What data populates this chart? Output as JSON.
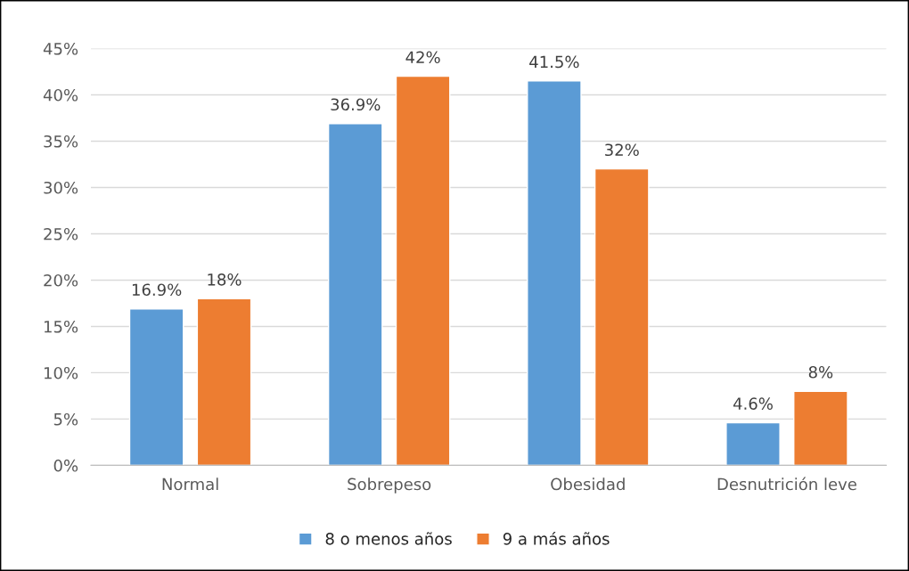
{
  "chart_data": {
    "type": "bar",
    "categories": [
      "Normal",
      "Sobrepeso",
      "Obesidad",
      "Desnutrición leve"
    ],
    "series": [
      {
        "name": "8 o menos años",
        "color": "#5b9bd5",
        "values": [
          16.9,
          36.9,
          41.5,
          4.6
        ],
        "value_labels": [
          "16.9%",
          "36.9%",
          "41.5%",
          "4.6%"
        ]
      },
      {
        "name": "9 a más años",
        "color": "#ed7d31",
        "values": [
          18,
          42,
          32,
          8
        ],
        "value_labels": [
          "18%",
          "42%",
          "32%",
          "8%"
        ]
      }
    ],
    "ylim": [
      0,
      45
    ],
    "yticks": [
      {
        "value": 0,
        "label": "0%"
      },
      {
        "value": 5,
        "label": "5%"
      },
      {
        "value": 10,
        "label": "10%"
      },
      {
        "value": 15,
        "label": "15%"
      },
      {
        "value": 20,
        "label": "20%"
      },
      {
        "value": 25,
        "label": "25%"
      },
      {
        "value": 30,
        "label": "30%"
      },
      {
        "value": 35,
        "label": "35%"
      },
      {
        "value": 40,
        "label": "40%"
      },
      {
        "value": 45,
        "label": "45%"
      }
    ],
    "grid": "y",
    "legend": "bottom"
  }
}
